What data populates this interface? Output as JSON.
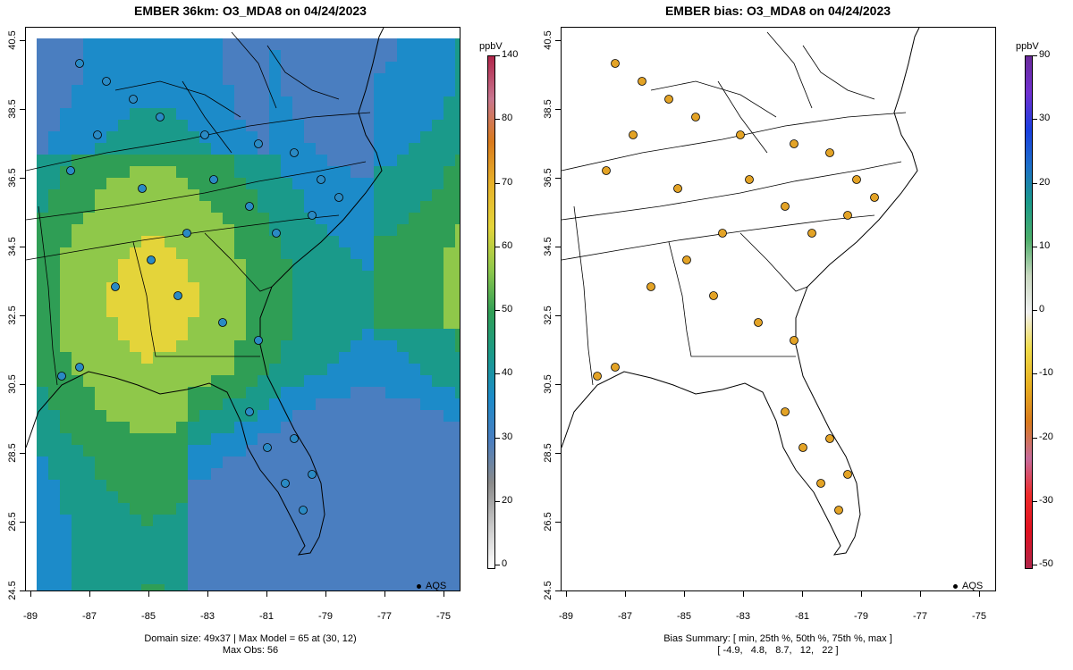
{
  "left_panel": {
    "title": "EMBER 36km: O3_MDA8 on 04/24/2023",
    "footer_line1": "Domain size: 49x37 | Max Model = 65 at (30, 12)",
    "footer_line2": "Max Obs: 56",
    "legend_label": "AQS",
    "colorbar": {
      "unit": "ppbV",
      "ticks": [
        "140",
        "80",
        "70",
        "60",
        "50",
        "40",
        "30",
        "20",
        "0"
      ],
      "ramp": [
        "#ffffff",
        "#c8c8c8",
        "#8a8a8a",
        "#4a7ec0",
        "#1c8bc9",
        "#1a9a8a",
        "#2f9e55",
        "#8fc84a",
        "#e4d43a",
        "#e7b22a",
        "#d97a1c",
        "#c8768f",
        "#b0254a"
      ]
    }
  },
  "right_panel": {
    "title": "EMBER bias: O3_MDA8 on 04/24/2023",
    "footer_line1": "Bias Summary: [ min, 25th %, 50th %, 75th %, max ]",
    "footer_line2": "[ -4.9,   4.8,   8.7,   12,   22 ]",
    "legend_label": "AQS",
    "colorbar": {
      "unit": "ppbV",
      "ticks": [
        "90",
        "30",
        "20",
        "10",
        "0",
        "-10",
        "-20",
        "-30",
        "-50"
      ],
      "ramp": [
        "#b0254a",
        "#e01020",
        "#ee2a2a",
        "#c86b9b",
        "#d97a1c",
        "#e8b020",
        "#f0dc4a",
        "#f0f0f0",
        "#c8d8c0",
        "#4cae6a",
        "#1a9a8a",
        "#1c6fc9",
        "#1a3ee0",
        "#7030d0",
        "#6a2a9a"
      ]
    }
  },
  "axes": {
    "x_ticks": [
      "-89",
      "-87",
      "-85",
      "-83",
      "-81",
      "-79",
      "-77",
      "-75"
    ],
    "y_ticks": [
      "40.5",
      "38.5",
      "36.5",
      "34.5",
      "32.5",
      "30.5",
      "28.5",
      "26.5",
      "24.5"
    ]
  },
  "map_colors": {
    "sites_left": "#2a8ac4",
    "sites_right": "#e3a326",
    "outline": "#000000"
  }
}
